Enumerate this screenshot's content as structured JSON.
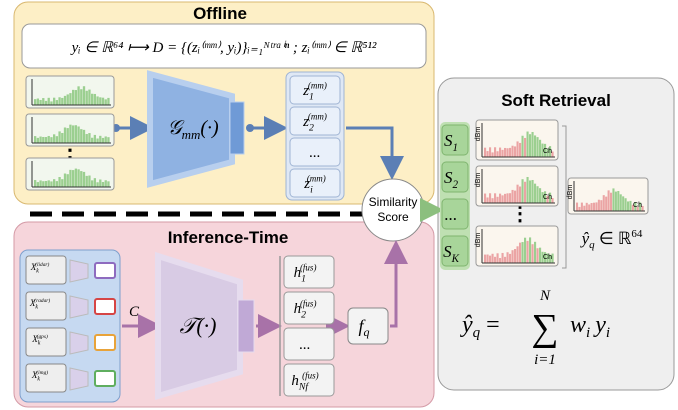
{
  "offline": {
    "title": "Offline",
    "formula": "yᵢ ∈ ℝ⁶⁴ ⟼ D = {(zᵢ⁽ᵐᵐ⁾, yᵢ)}ᵢ₌₁ᴺᵗʳᵃⁱⁿ ; zᵢ⁽ᵐᵐ⁾ ∈ ℝ⁵¹²",
    "dots": "⋮",
    "encoder": {
      "base": "𝒢",
      "sub": "mm",
      "rest": "(·)"
    },
    "embeddings": [
      {
        "base": "z",
        "sub": "1",
        "sup": "(mm)"
      },
      {
        "base": "z",
        "sub": "2",
        "sup": "(mm)"
      },
      {
        "base": "...",
        "sub": "",
        "sup": ""
      },
      {
        "base": "z",
        "sub": "i",
        "sup": "(mm)"
      }
    ]
  },
  "similarity": {
    "line1": "Similarity",
    "line2": "Score"
  },
  "inference": {
    "title": "Inference-Time",
    "inputs": [
      {
        "base": "X",
        "sub": "k",
        "sup": "(lidar)"
      },
      {
        "base": "X",
        "sub": "k",
        "sup": "(radar)"
      },
      {
        "base": "X",
        "sub": "k",
        "sup": "(gps)"
      },
      {
        "base": "X",
        "sub": "k",
        "sup": "(img)"
      }
    ],
    "concat": "C",
    "encoder": {
      "base": "𝒯",
      "rest": "(·)"
    },
    "fused": [
      {
        "base": "h",
        "sub": "1",
        "sup": "(fus)"
      },
      {
        "base": "h",
        "sub": "2",
        "sup": "(fus)"
      },
      {
        "base": "...",
        "sub": "",
        "sup": ""
      },
      {
        "base": "h",
        "sub": "Nf",
        "sup": "(fus)"
      }
    ],
    "query": {
      "base": "f",
      "sub": "q"
    }
  },
  "soft_retrieval": {
    "title": "Soft Retrieval",
    "scores": [
      {
        "base": "S",
        "sub": "1"
      },
      {
        "base": "S",
        "sub": "2"
      },
      {
        "base": "...",
        "sub": ""
      },
      {
        "base": "S",
        "sub": "K"
      }
    ],
    "dots": "⋮",
    "axis_y": "dBm",
    "axis_x": "Ch",
    "output": {
      "base": "ŷ",
      "sub": "q",
      "rest": " ∈ ℝ",
      "sup": "64"
    },
    "formula": {
      "lhs": "ŷ",
      "lhs_sub": "q",
      "eq": "=",
      "sum": "∑",
      "top": "N",
      "bottom": "i=1",
      "w": "w",
      "w_sub": "i",
      "y": "y",
      "y_sub": "i"
    }
  }
}
